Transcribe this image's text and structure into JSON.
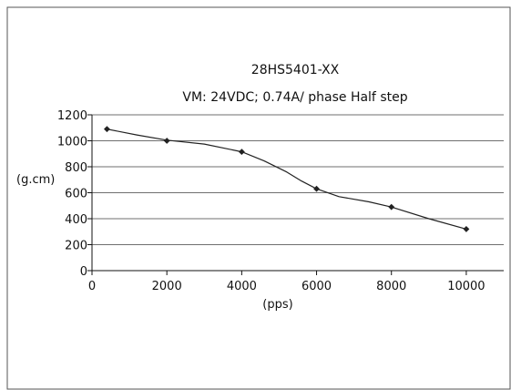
{
  "chart_data": {
    "type": "line",
    "title": "28HS5401-XX",
    "subtitle": "VM: 24VDC; 0.74A/ phase  Half step",
    "xlabel": "(pps)",
    "ylabel": "(g.cm)",
    "xlim": [
      0,
      11000
    ],
    "ylim": [
      0,
      1200
    ],
    "xticks": [
      0,
      2000,
      4000,
      6000,
      8000,
      10000
    ],
    "yticks": [
      0,
      200,
      400,
      600,
      800,
      1000,
      1200
    ],
    "grid": "horizontal",
    "legend": "none",
    "colors": {
      "line": "#222222",
      "grid": "#6f6f6f",
      "axis": "#111111"
    },
    "series": [
      {
        "markers": true,
        "points": [
          {
            "x": 400,
            "y": 1090
          },
          {
            "x": 2000,
            "y": 1000
          },
          {
            "x": 4000,
            "y": 915
          },
          {
            "x": 6000,
            "y": 630
          },
          {
            "x": 8000,
            "y": 490
          },
          {
            "x": 10000,
            "y": 320
          }
        ],
        "curve": [
          {
            "x": 400,
            "y": 1090
          },
          {
            "x": 1200,
            "y": 1045
          },
          {
            "x": 2000,
            "y": 1005
          },
          {
            "x": 3000,
            "y": 975
          },
          {
            "x": 4000,
            "y": 915
          },
          {
            "x": 4600,
            "y": 845
          },
          {
            "x": 5200,
            "y": 760
          },
          {
            "x": 5600,
            "y": 690
          },
          {
            "x": 6000,
            "y": 630
          },
          {
            "x": 6600,
            "y": 570
          },
          {
            "x": 7400,
            "y": 530
          },
          {
            "x": 8000,
            "y": 490
          },
          {
            "x": 9000,
            "y": 400
          },
          {
            "x": 10000,
            "y": 320
          }
        ]
      }
    ]
  }
}
